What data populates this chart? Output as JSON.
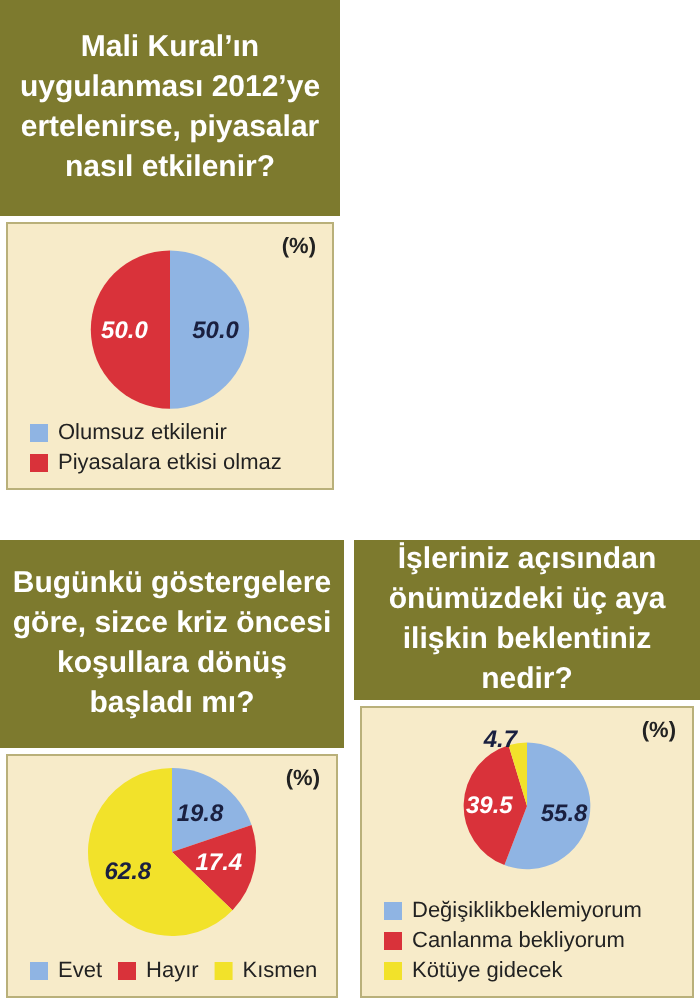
{
  "chart_data": [
    {
      "type": "pie",
      "title": "Mali Kural’ın uygulanması 2012’ye ertelenirse, piyasalar nasıl etkilenir?",
      "categories": [
        "Olumsuz etkilenir",
        "Piyasalara etkisi olmaz"
      ],
      "values": [
        50,
        50
      ],
      "value_labels": [
        "50.0",
        "50.0"
      ],
      "colors": [
        "#8fb4e3",
        "#d9323a"
      ],
      "legend": "bottom",
      "annotations": [
        "(%)"
      ]
    },
    {
      "type": "pie",
      "title": "Bugünkü göstergelere göre, sizce kriz öncesi koşullara dönüş başladı mı?",
      "categories": [
        "Evet",
        "Hayır",
        "Kısmen"
      ],
      "values": [
        19.8,
        17.4,
        62.8
      ],
      "value_labels": [
        "19.8",
        "17.4",
        "62.8"
      ],
      "colors": [
        "#8fb4e3",
        "#d9323a",
        "#f2e22a"
      ],
      "legend": "bottom",
      "annotations": [
        "(%)"
      ]
    },
    {
      "type": "pie",
      "title": "İşleriniz açısından önümüzdeki üç aya ilişkin beklentiniz nedir?",
      "categories": [
        "Değişiklikbeklemiyorum",
        "Canlanma bekliyorum",
        "Kötüye gidecek"
      ],
      "values": [
        55.8,
        39.5,
        4.7
      ],
      "value_labels": [
        "55.8",
        "39.5",
        "4.7"
      ],
      "colors": [
        "#8fb4e3",
        "#d9323a",
        "#f2e22a"
      ],
      "legend": "bottom",
      "annotations": [
        "(%)"
      ]
    }
  ]
}
